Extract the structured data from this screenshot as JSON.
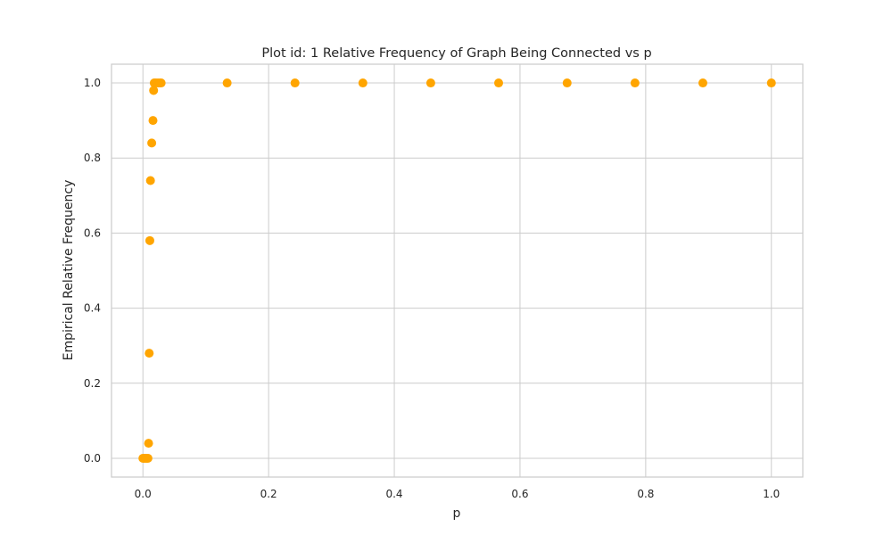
{
  "chart_data": {
    "type": "scatter",
    "title": "Plot id: 1 Relative Frequency of Graph Being Connected vs p",
    "xlabel": "p",
    "ylabel": "Empirical Relative Frequency",
    "xlim": [
      -0.05,
      1.05
    ],
    "ylim": [
      -0.05,
      1.05
    ],
    "xticks": [
      0.0,
      0.2,
      0.4,
      0.6,
      0.8,
      1.0
    ],
    "yticks": [
      0.0,
      0.2,
      0.4,
      0.6,
      0.8,
      1.0
    ],
    "xtick_labels": [
      "0.0",
      "0.2",
      "0.4",
      "0.6",
      "0.8",
      "1.0"
    ],
    "ytick_labels": [
      "0.0",
      "0.2",
      "0.4",
      "0.6",
      "0.8",
      "1.0"
    ],
    "grid": true,
    "marker_color": "#ffa500",
    "series": [
      {
        "x": [
          0.0,
          0.002,
          0.004,
          0.006,
          0.008,
          0.009,
          0.01,
          0.011,
          0.012,
          0.014,
          0.016,
          0.017,
          0.018,
          0.019,
          0.021,
          0.024,
          0.027,
          0.029,
          0.134,
          0.242,
          0.35,
          0.458,
          0.566,
          0.675,
          0.783,
          0.891,
          1.0
        ],
        "y": [
          0.0,
          0.0,
          0.0,
          0.0,
          0.0,
          0.04,
          0.28,
          0.58,
          0.74,
          0.84,
          0.9,
          0.98,
          1.0,
          1.0,
          1.0,
          1.0,
          1.0,
          1.0,
          1.0,
          1.0,
          1.0,
          1.0,
          1.0,
          1.0,
          1.0,
          1.0,
          1.0
        ]
      }
    ]
  }
}
